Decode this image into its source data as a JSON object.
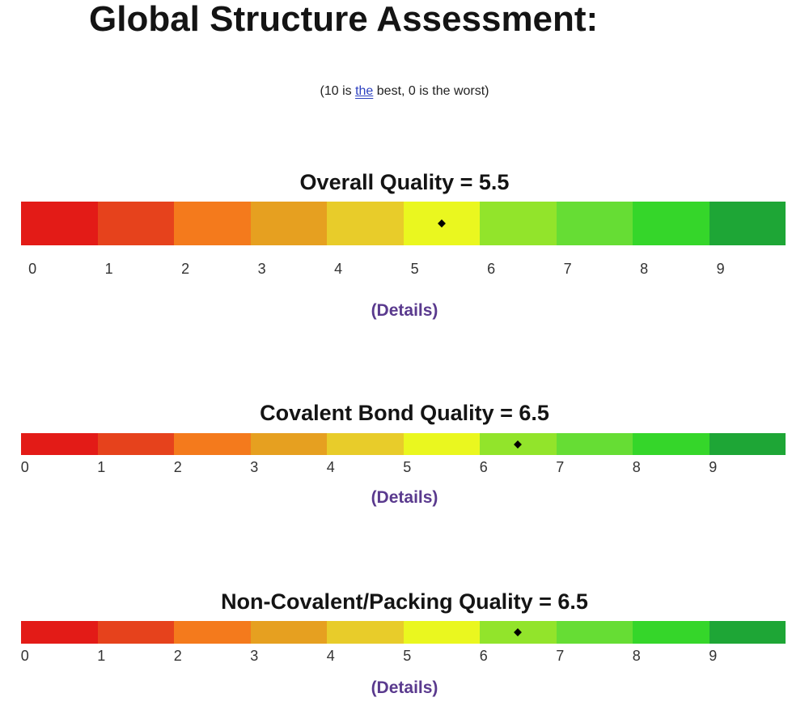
{
  "header": {
    "title": "Global Structure Assessment:",
    "scale_note_prefix": "(10 is ",
    "scale_note_link": "the",
    "scale_note_suffix": " best, 0 is the worst)"
  },
  "scale": {
    "ticks": [
      "0",
      "1",
      "2",
      "3",
      "4",
      "5",
      "6",
      "7",
      "8",
      "9"
    ],
    "segment_colors": [
      "#e31b17",
      "#e6421c",
      "#f47a1c",
      "#e6a020",
      "#e8cc2a",
      "#eaf71f",
      "#92e42b",
      "#66dd34",
      "#35d62a",
      "#1ea636"
    ]
  },
  "meters": [
    {
      "title": "Overall Quality = 5.5",
      "value": 5.5,
      "details_label": "(Details)"
    },
    {
      "title": "Covalent Bond Quality = 6.5",
      "value": 6.5,
      "details_label": "(Details)"
    },
    {
      "title": "Non-Covalent/Packing Quality = 6.5",
      "value": 6.5,
      "details_label": "(Details)"
    }
  ]
}
